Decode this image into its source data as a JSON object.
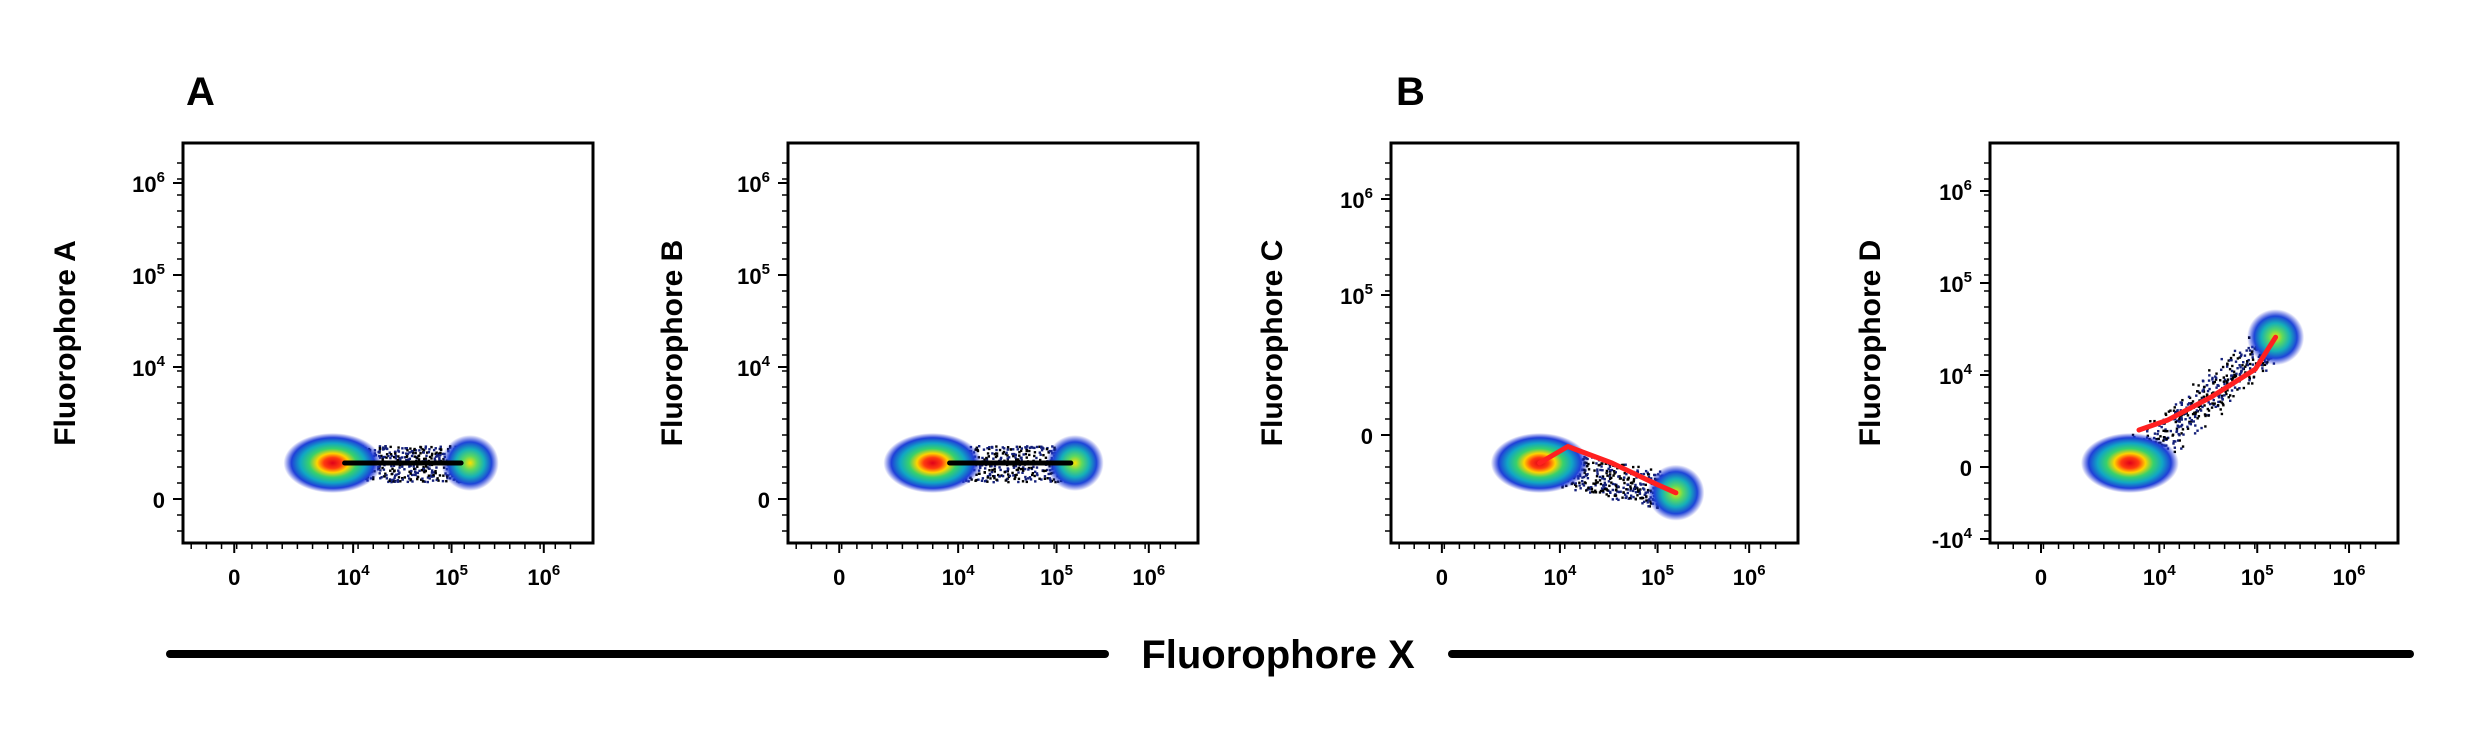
{
  "panel_letters": [
    "A",
    "B"
  ],
  "shared_xlabel": "Fluorophore X",
  "chart_data": [
    {
      "type": "scatter",
      "style": "density-colored flow cytometry dot plot with fit line",
      "xlabel": "Fluorophore X",
      "ylabel": "Fluorophore A",
      "x_scale": "biexponential",
      "y_scale": "biexponential",
      "x_ticks": [
        {
          "base": "0",
          "exp": ""
        },
        {
          "base": "10",
          "exp": "4"
        },
        {
          "base": "10",
          "exp": "5"
        },
        {
          "base": "10",
          "exp": "6"
        }
      ],
      "y_ticks": [
        {
          "base": "0",
          "exp": ""
        },
        {
          "base": "10",
          "exp": "4"
        },
        {
          "base": "10",
          "exp": "5"
        },
        {
          "base": "10",
          "exp": "6"
        }
      ],
      "fit_line_color": "#000000",
      "populations": [
        {
          "x": 1500,
          "y": 0,
          "density": "high"
        },
        {
          "x": 100000,
          "y": 0,
          "density": "medium"
        }
      ],
      "fit_line": {
        "x": [
          2500,
          80000
        ],
        "y": [
          0,
          0
        ]
      }
    },
    {
      "type": "scatter",
      "style": "density-colored flow cytometry dot plot with fit line",
      "xlabel": "Fluorophore X",
      "ylabel": "Fluorophore B",
      "x_scale": "biexponential",
      "y_scale": "biexponential",
      "x_ticks": [
        {
          "base": "0",
          "exp": ""
        },
        {
          "base": "10",
          "exp": "4"
        },
        {
          "base": "10",
          "exp": "5"
        },
        {
          "base": "10",
          "exp": "6"
        }
      ],
      "y_ticks": [
        {
          "base": "0",
          "exp": ""
        },
        {
          "base": "10",
          "exp": "4"
        },
        {
          "base": "10",
          "exp": "5"
        },
        {
          "base": "10",
          "exp": "6"
        }
      ],
      "fit_line_color": "#000000",
      "populations": [
        {
          "x": 1200,
          "y": 0,
          "density": "high"
        },
        {
          "x": 100000,
          "y": 0,
          "density": "medium"
        }
      ],
      "fit_line": {
        "x": [
          2500,
          90000
        ],
        "y": [
          0,
          0
        ]
      }
    },
    {
      "type": "scatter",
      "style": "density-colored flow cytometry dot plot with fit line",
      "xlabel": "Fluorophore X",
      "ylabel": "Fluorophore C",
      "x_scale": "biexponential",
      "y_scale": "biexponential",
      "x_ticks": [
        {
          "base": "0",
          "exp": ""
        },
        {
          "base": "10",
          "exp": "4"
        },
        {
          "base": "10",
          "exp": "5"
        },
        {
          "base": "10",
          "exp": "6"
        }
      ],
      "y_ticks": [
        {
          "base": "0",
          "exp": ""
        },
        {
          "base": "10",
          "exp": "5"
        },
        {
          "base": "10",
          "exp": "6"
        }
      ],
      "fit_line_color": "#ff2020",
      "populations": [
        {
          "x": 1500,
          "y": 0,
          "density": "high"
        },
        {
          "x": 100000,
          "y": -3000,
          "density": "medium"
        }
      ],
      "fit_line": {
        "x": [
          1500,
          5000,
          20000,
          60000,
          100000
        ],
        "y": [
          0,
          100,
          0,
          -1000,
          -3000
        ]
      }
    },
    {
      "type": "scatter",
      "style": "density-colored flow cytometry dot plot with fit line",
      "xlabel": "Fluorophore X",
      "ylabel": "Fluorophore D",
      "x_scale": "biexponential",
      "y_scale": "biexponential",
      "x_ticks": [
        {
          "base": "0",
          "exp": ""
        },
        {
          "base": "10",
          "exp": "4"
        },
        {
          "base": "10",
          "exp": "5"
        },
        {
          "base": "10",
          "exp": "6"
        }
      ],
      "y_ticks": [
        {
          "base": "-10",
          "exp": "4"
        },
        {
          "base": "0",
          "exp": ""
        },
        {
          "base": "10",
          "exp": "4"
        },
        {
          "base": "10",
          "exp": "5"
        },
        {
          "base": "10",
          "exp": "6"
        }
      ],
      "fit_line_color": "#ff2020",
      "populations": [
        {
          "x": 1000,
          "y": 0,
          "density": "high"
        },
        {
          "x": 100000,
          "y": 15000,
          "density": "medium"
        }
      ],
      "fit_line": {
        "x": [
          1500,
          5000,
          20000,
          60000,
          100000
        ],
        "y": [
          300,
          500,
          1500,
          5000,
          15000
        ]
      }
    }
  ]
}
